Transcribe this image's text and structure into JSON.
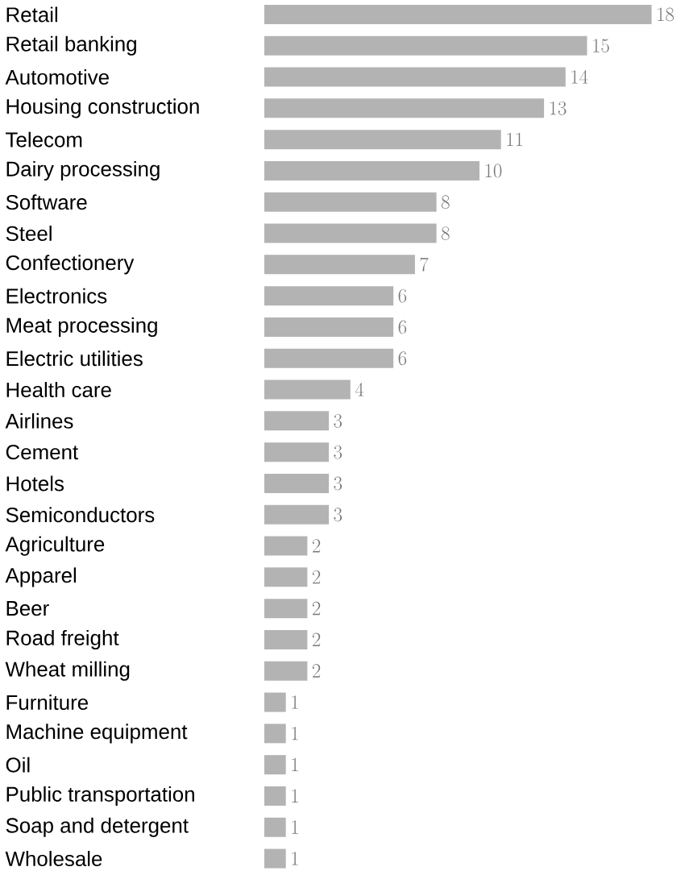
{
  "chart_data": {
    "type": "bar",
    "orientation": "horizontal",
    "data_labels": true,
    "color": "#b3b3b3",
    "categories": [
      "Retail",
      "Retail banking",
      "Automotive",
      "Housing construction",
      "Telecom",
      "Dairy processing",
      "Software",
      "Steel",
      "Confectionery",
      "Electronics",
      "Meat processing",
      "Electric utilities",
      "Health care",
      "Airlines",
      "Cement",
      "Hotels",
      "Semiconductors",
      "Agriculture",
      "Apparel",
      "Beer",
      "Road freight",
      "Wheat milling",
      "Furniture",
      "Machine equipment",
      "Oil",
      "Public transportation",
      "Soap and detergent",
      "Wholesale"
    ],
    "values": [
      18,
      15,
      14,
      13,
      11,
      10,
      8,
      8,
      7,
      6,
      6,
      6,
      4,
      3,
      3,
      3,
      3,
      2,
      2,
      2,
      2,
      2,
      1,
      1,
      1,
      1,
      1,
      1
    ]
  }
}
